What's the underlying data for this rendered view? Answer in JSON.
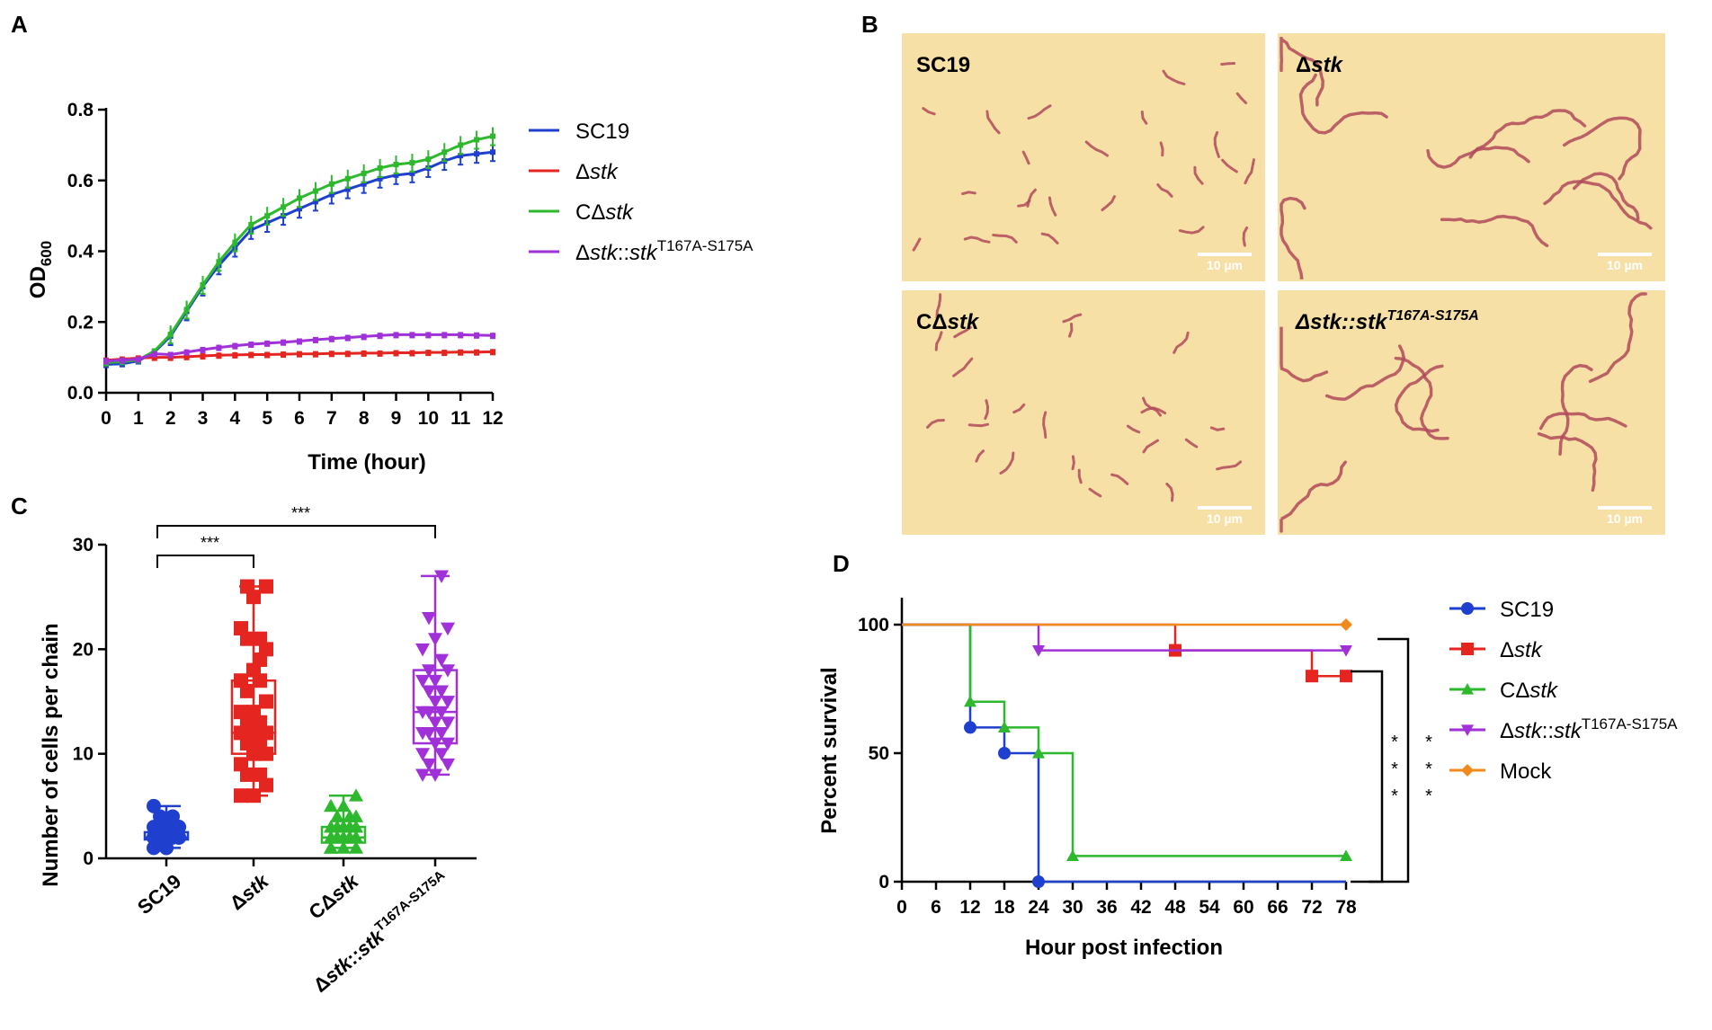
{
  "panel_labels": {
    "a": "A",
    "b": "B",
    "c": "C",
    "d": "D"
  },
  "chart_data": [
    {
      "id": "A",
      "type": "line",
      "title": "",
      "xlabel": "Time (hour)",
      "ylabel": "OD",
      "ylabel_sub": "600",
      "xlim": [
        0,
        12
      ],
      "ylim": [
        0,
        0.8
      ],
      "xticks": [
        0,
        1,
        2,
        3,
        4,
        5,
        6,
        7,
        8,
        9,
        10,
        11,
        12
      ],
      "yticks": [
        0.0,
        0.2,
        0.4,
        0.6,
        0.8
      ],
      "ytick_labels": [
        "0.0",
        "0.2",
        "0.4",
        "0.6",
        "0.8"
      ],
      "legend_position": "right",
      "x": [
        0,
        0.5,
        1,
        1.5,
        2,
        2.5,
        3,
        3.5,
        4,
        4.5,
        5,
        5.5,
        6,
        6.5,
        7,
        7.5,
        8,
        8.5,
        9,
        9.5,
        10,
        10.5,
        11,
        11.5,
        12
      ],
      "series": [
        {
          "name": "SC19",
          "pre": "",
          "ital": "",
          "mid": "",
          "ital2": "",
          "sup": "",
          "color": "#1f3fcf",
          "values": [
            0.08,
            0.082,
            0.09,
            0.115,
            0.16,
            0.23,
            0.3,
            0.36,
            0.41,
            0.46,
            0.48,
            0.5,
            0.52,
            0.54,
            0.56,
            0.575,
            0.59,
            0.605,
            0.615,
            0.62,
            0.635,
            0.655,
            0.67,
            0.675,
            0.68
          ]
        },
        {
          "name": "Δstk",
          "pre": "Δ",
          "ital": "stk",
          "mid": "",
          "ital2": "",
          "sup": "",
          "color": "#e52520",
          "values": [
            0.092,
            0.095,
            0.098,
            0.1,
            0.1,
            0.102,
            0.104,
            0.106,
            0.107,
            0.108,
            0.108,
            0.109,
            0.11,
            0.11,
            0.111,
            0.111,
            0.112,
            0.112,
            0.113,
            0.113,
            0.114,
            0.114,
            0.115,
            0.115,
            0.116
          ]
        },
        {
          "name": "CΔstk",
          "pre": "CΔ",
          "ital": "stk",
          "mid": "",
          "ital2": "",
          "sup": "",
          "color": "#2db82d",
          "values": [
            0.085,
            0.088,
            0.093,
            0.118,
            0.165,
            0.235,
            0.305,
            0.37,
            0.425,
            0.475,
            0.5,
            0.525,
            0.55,
            0.57,
            0.59,
            0.605,
            0.62,
            0.635,
            0.645,
            0.65,
            0.66,
            0.68,
            0.7,
            0.715,
            0.725
          ]
        },
        {
          "name": "Δstk::stkT167A-S175A",
          "pre": "Δ",
          "ital": "stk",
          "mid": "::",
          "ital2": "stk",
          "sup": "T167A-S175A",
          "color": "#a030d8",
          "values": [
            0.09,
            0.092,
            0.095,
            0.11,
            0.108,
            0.115,
            0.122,
            0.128,
            0.133,
            0.137,
            0.14,
            0.143,
            0.146,
            0.15,
            0.153,
            0.156,
            0.159,
            0.162,
            0.164,
            0.164,
            0.164,
            0.164,
            0.164,
            0.163,
            0.162
          ]
        }
      ]
    },
    {
      "id": "C",
      "type": "box",
      "title": "",
      "xlabel": "",
      "ylabel": "Number of cells per chain",
      "ylim": [
        0,
        30
      ],
      "yticks": [
        0,
        10,
        20,
        30
      ],
      "categories": [
        {
          "name": "SC19",
          "pre": "",
          "ital": "",
          "mid": "",
          "ital2": "",
          "sup": "",
          "color": "#1f3fcf",
          "marker": "circle",
          "min": 1,
          "q1": 1.8,
          "median": 2,
          "q3": 2.5,
          "max": 5,
          "points": [
            1,
            1,
            2,
            2,
            2,
            2,
            2,
            2,
            2,
            2,
            2,
            2,
            2,
            2,
            3,
            3,
            3,
            3,
            4,
            4,
            5,
            1,
            2,
            2,
            3,
            2,
            2,
            3,
            2,
            3
          ]
        },
        {
          "name": "Δstk",
          "pre": "Δ",
          "ital": "stk",
          "mid": "",
          "ital2": "",
          "sup": "",
          "color": "#e52520",
          "marker": "square",
          "min": 6,
          "q1": 10,
          "median": 12,
          "q3": 17,
          "max": 26,
          "points": [
            6,
            6,
            7,
            8,
            8,
            9,
            10,
            10,
            11,
            11,
            12,
            12,
            12,
            13,
            13,
            14,
            14,
            15,
            16,
            17,
            17,
            18,
            20,
            21,
            21,
            22,
            25,
            26,
            26,
            19
          ]
        },
        {
          "name": "CΔstk",
          "pre": "CΔ",
          "ital": "stk",
          "mid": "",
          "ital2": "",
          "sup": "",
          "color": "#2db82d",
          "marker": "triangle",
          "min": 1,
          "q1": 1.5,
          "median": 2,
          "q3": 3,
          "max": 6,
          "points": [
            1,
            1,
            1,
            2,
            2,
            2,
            2,
            2,
            2,
            2,
            2,
            3,
            3,
            3,
            3,
            3,
            3,
            4,
            4,
            4,
            5,
            5,
            6,
            2,
            2,
            1,
            3,
            2,
            2,
            3
          ]
        },
        {
          "name": "Δstk::stkT167A-S175A",
          "pre": "Δ",
          "ital": "stk",
          "mid": "::",
          "ital2": "stk",
          "sup": "T167A-S175A",
          "color": "#a030d8",
          "marker": "triangle-down",
          "min": 8,
          "q1": 11,
          "median": 14,
          "q3": 18,
          "max": 27,
          "points": [
            8,
            8,
            9,
            9,
            10,
            10,
            11,
            11,
            12,
            12,
            12,
            13,
            13,
            14,
            14,
            14,
            15,
            15,
            16,
            16,
            17,
            17,
            18,
            18,
            19,
            20,
            21,
            22,
            23,
            27
          ]
        }
      ],
      "significance": [
        {
          "from": 0,
          "to": 1,
          "label": "***"
        },
        {
          "from": 0,
          "to": 3,
          "label": "***"
        }
      ]
    },
    {
      "id": "D",
      "type": "line",
      "step": true,
      "title": "",
      "xlabel": "Hour post infection",
      "ylabel": "Percent survival",
      "xlim": [
        0,
        78
      ],
      "ylim": [
        0,
        100
      ],
      "xticks": [
        0,
        6,
        12,
        18,
        24,
        30,
        36,
        42,
        48,
        54,
        60,
        66,
        72,
        78
      ],
      "yticks": [
        0,
        50,
        100
      ],
      "legend_position": "right",
      "series": [
        {
          "name": "SC19",
          "pre": "",
          "ital": "",
          "mid": "",
          "ital2": "",
          "sup": "",
          "color": "#1f3fcf",
          "marker": "circle",
          "steps": [
            [
              0,
              100
            ],
            [
              12,
              60
            ],
            [
              18,
              50
            ],
            [
              24,
              0
            ]
          ],
          "marked": [
            [
              12,
              60
            ],
            [
              18,
              50
            ],
            [
              24,
              0
            ]
          ]
        },
        {
          "name": "Δstk",
          "pre": "Δ",
          "ital": "stk",
          "mid": "",
          "ital2": "",
          "sup": "",
          "color": "#e52520",
          "marker": "square",
          "steps": [
            [
              0,
              100
            ],
            [
              48,
              90
            ],
            [
              72,
              80
            ],
            [
              78,
              80
            ]
          ],
          "marked": [
            [
              48,
              90
            ],
            [
              72,
              80
            ],
            [
              78,
              80
            ]
          ]
        },
        {
          "name": "CΔstk",
          "pre": "CΔ",
          "ital": "stk",
          "mid": "",
          "ital2": "",
          "sup": "",
          "color": "#2db82d",
          "marker": "triangle",
          "steps": [
            [
              0,
              100
            ],
            [
              12,
              70
            ],
            [
              18,
              60
            ],
            [
              24,
              50
            ],
            [
              30,
              10
            ],
            [
              78,
              10
            ]
          ],
          "marked": [
            [
              12,
              70
            ],
            [
              18,
              60
            ],
            [
              24,
              50
            ],
            [
              30,
              10
            ],
            [
              78,
              10
            ]
          ]
        },
        {
          "name": "Δstk::stkT167A-S175A",
          "pre": "Δ",
          "ital": "stk",
          "mid": "::",
          "ital2": "stk",
          "sup": "T167A-S175A",
          "color": "#a030d8",
          "marker": "triangle-down",
          "steps": [
            [
              0,
              100
            ],
            [
              24,
              90
            ],
            [
              78,
              90
            ]
          ],
          "marked": [
            [
              24,
              90
            ],
            [
              78,
              90
            ]
          ]
        },
        {
          "name": "Mock",
          "pre": "",
          "ital": "",
          "mid": "",
          "ital2": "",
          "sup": "",
          "color": "#f08a1c",
          "marker": "diamond",
          "steps": [
            [
              0,
              100
            ],
            [
              78,
              100
            ]
          ],
          "marked": [
            [
              78,
              100
            ]
          ]
        }
      ],
      "significance": [
        {
          "label": "***",
          "bracket": "red-purple"
        },
        {
          "label": "***",
          "bracket": "mock"
        }
      ]
    }
  ],
  "micrographs": {
    "scale_bar": "10 µm",
    "colors": {
      "background": "#f7e0a6",
      "chain": "#b04a5a",
      "gap": "#ffffff"
    },
    "panels": [
      {
        "pre": "",
        "ital": "",
        "mid": "",
        "ital2": "",
        "sup": "",
        "text": "SC19"
      },
      {
        "pre": "Δ",
        "ital": "stk",
        "mid": "",
        "ital2": "",
        "sup": "",
        "text": ""
      },
      {
        "pre": "CΔ",
        "ital": "stk",
        "mid": "",
        "ital2": "",
        "sup": "",
        "text": ""
      },
      {
        "pre": "Δ",
        "ital": "stk::stk",
        "mid": "",
        "ital2": "",
        "sup": "T167A-S175A",
        "text": ""
      }
    ]
  }
}
